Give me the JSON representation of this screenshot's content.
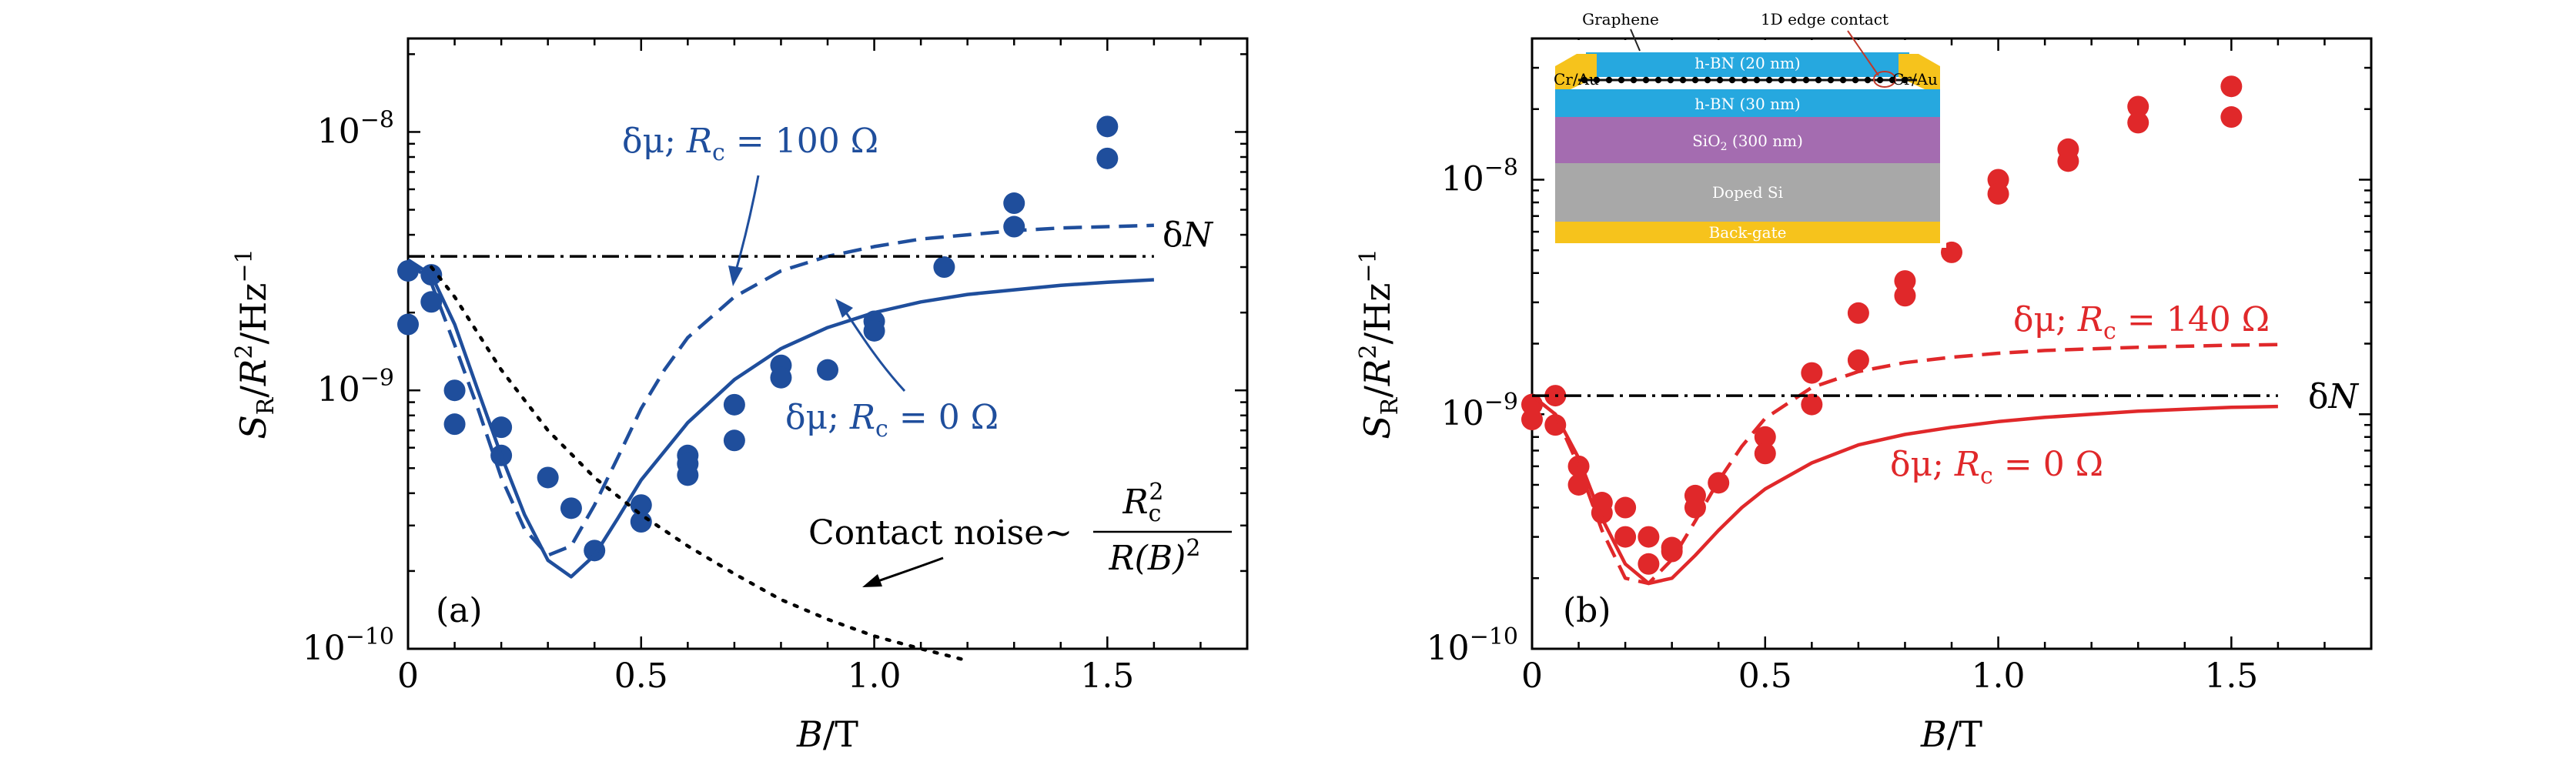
{
  "chart_data": [
    {
      "type": "scatter",
      "panel_label": "(a)",
      "xlabel": "B/T",
      "ylabel": "S_R/R^2/Hz^-1",
      "xlim": [
        0,
        1.8
      ],
      "ylim": [
        1e-10,
        2.3e-08
      ],
      "yscale": "log",
      "x_ticks": [
        "0",
        "0.5",
        "1.0",
        "1.5"
      ],
      "x_tick_values": [
        0,
        0.5,
        1.0,
        1.5
      ],
      "y_ticks": [
        "10^-10",
        "10^-9",
        "10^-8"
      ],
      "color": "#1f4e9c",
      "series": [
        {
          "kind": "points",
          "x": [
            0,
            0,
            0.05,
            0.05,
            0.1,
            0.1,
            0.2,
            0.2,
            0.3,
            0.35,
            0.4,
            0.5,
            0.5,
            0.6,
            0.6,
            0.6,
            0.7,
            0.7,
            0.8,
            0.8,
            0.9,
            1.0,
            1.0,
            1.15,
            1.3,
            1.3,
            1.5,
            1.5
          ],
          "y": [
            1.8e-09,
            2.9e-09,
            2.2e-09,
            2.8e-09,
            1e-09,
            7.4e-10,
            7.2e-10,
            5.6e-10,
            4.6e-10,
            3.5e-10,
            2.4e-10,
            3.6e-10,
            3.1e-10,
            5.6e-10,
            5.2e-10,
            4.7e-10,
            8.8e-10,
            6.4e-10,
            1.25e-09,
            1.12e-09,
            1.2e-09,
            1.85e-09,
            1.7e-09,
            3e-09,
            5.3e-09,
            4.3e-09,
            1.05e-08,
            7.9e-09
          ]
        },
        {
          "kind": "solid",
          "label_ref": "annotations.blue_solid",
          "x": [
            0,
            0.05,
            0.1,
            0.15,
            0.2,
            0.25,
            0.3,
            0.35,
            0.4,
            0.45,
            0.5,
            0.6,
            0.7,
            0.8,
            0.9,
            1.0,
            1.1,
            1.2,
            1.3,
            1.4,
            1.5,
            1.6
          ],
          "y": [
            3.2e-09,
            2.8e-09,
            1.8e-09,
            1e-09,
            5.6e-10,
            3.3e-10,
            2.2e-10,
            1.9e-10,
            2.3e-10,
            3.2e-10,
            4.5e-10,
            7.5e-10,
            1.1e-09,
            1.45e-09,
            1.75e-09,
            2e-09,
            2.2e-09,
            2.35e-09,
            2.45e-09,
            2.55e-09,
            2.62e-09,
            2.68e-09
          ]
        },
        {
          "kind": "dashed",
          "label_ref": "annotations.blue_dashed",
          "x": [
            0,
            0.05,
            0.1,
            0.15,
            0.2,
            0.25,
            0.3,
            0.35,
            0.4,
            0.45,
            0.5,
            0.55,
            0.6,
            0.7,
            0.8,
            0.9,
            1.0,
            1.1,
            1.2,
            1.3,
            1.4,
            1.5,
            1.6
          ],
          "y": [
            3.2e-09,
            2.6e-09,
            1.5e-09,
            8.5e-10,
            4.6e-10,
            2.9e-10,
            2.3e-10,
            2.5e-10,
            3.6e-10,
            5.5e-10,
            8.5e-10,
            1.2e-09,
            1.6e-09,
            2.3e-09,
            2.9e-09,
            3.3e-09,
            3.6e-09,
            3.85e-09,
            4e-09,
            4.15e-09,
            4.25e-09,
            4.3e-09,
            4.35e-09
          ]
        },
        {
          "kind": "dotted",
          "color": "#000000",
          "label_ref": "annotations.contact",
          "x": [
            0.05,
            0.1,
            0.2,
            0.3,
            0.4,
            0.5,
            0.6,
            0.7,
            0.8,
            0.9,
            1.0,
            1.1,
            1.2
          ],
          "y": [
            3e-09,
            2.3e-09,
            1.2e-09,
            7e-10,
            4.6e-10,
            3.3e-10,
            2.5e-10,
            1.95e-10,
            1.55e-10,
            1.3e-10,
            1.12e-10,
            1e-10,
            9e-11
          ]
        },
        {
          "kind": "dashdot",
          "color": "#000000",
          "label_ref": "annotations.dN",
          "x": [
            0,
            1.6
          ],
          "y": [
            3.3e-09,
            3.3e-09
          ]
        }
      ]
    },
    {
      "type": "scatter",
      "panel_label": "(b)",
      "xlabel": "B/T",
      "ylabel": "S_R/R^2/Hz^-1",
      "xlim": [
        0,
        1.8
      ],
      "ylim": [
        1e-10,
        4e-08
      ],
      "yscale": "log",
      "x_ticks": [
        "0",
        "0.5",
        "1.0",
        "1.5"
      ],
      "x_tick_values": [
        0,
        0.5,
        1.0,
        1.5
      ],
      "y_ticks": [
        "10^-10",
        "10^-9",
        "10^-8"
      ],
      "color": "#e0282a",
      "series": [
        {
          "kind": "points",
          "x": [
            0,
            0,
            0.05,
            0.05,
            0.1,
            0.1,
            0.15,
            0.15,
            0.2,
            0.2,
            0.25,
            0.25,
            0.3,
            0.3,
            0.35,
            0.35,
            0.4,
            0.5,
            0.5,
            0.6,
            0.6,
            0.7,
            0.7,
            0.8,
            0.8,
            0.9,
            1.0,
            1.0,
            1.15,
            1.15,
            1.3,
            1.3,
            1.5,
            1.5
          ],
          "y": [
            1.1e-09,
            9.5e-10,
            1.2e-09,
            9e-10,
            6e-10,
            5e-10,
            4.2e-10,
            3.8e-10,
            4e-10,
            3e-10,
            3e-10,
            2.3e-10,
            2.7e-10,
            2.6e-10,
            4.5e-10,
            4e-10,
            5.1e-10,
            8e-10,
            6.8e-10,
            1.5e-09,
            1.1e-09,
            2.7e-09,
            1.7e-09,
            3.7e-09,
            3.2e-09,
            4.9e-09,
            1e-08,
            8.7e-09,
            1.35e-08,
            1.2e-08,
            2.05e-08,
            1.75e-08,
            2.5e-08,
            1.85e-08
          ]
        },
        {
          "kind": "solid",
          "label_ref": "annotations.red_solid",
          "x": [
            0,
            0.05,
            0.1,
            0.15,
            0.2,
            0.25,
            0.3,
            0.35,
            0.4,
            0.45,
            0.5,
            0.6,
            0.7,
            0.8,
            0.9,
            1.0,
            1.1,
            1.2,
            1.3,
            1.4,
            1.5,
            1.6
          ],
          "y": [
            1.2e-09,
            1e-09,
            6.5e-10,
            3.6e-10,
            2.3e-10,
            1.9e-10,
            2e-10,
            2.5e-10,
            3.2e-10,
            4e-10,
            4.8e-10,
            6.2e-10,
            7.4e-10,
            8.2e-10,
            8.8e-10,
            9.3e-10,
            9.7e-10,
            1e-09,
            1.03e-09,
            1.05e-09,
            1.07e-09,
            1.08e-09
          ]
        },
        {
          "kind": "dashed",
          "label_ref": "annotations.red_dashed",
          "x": [
            0,
            0.05,
            0.1,
            0.15,
            0.2,
            0.25,
            0.3,
            0.35,
            0.4,
            0.45,
            0.5,
            0.6,
            0.7,
            0.8,
            0.9,
            1.0,
            1.1,
            1.2,
            1.3,
            1.4,
            1.5,
            1.6
          ],
          "y": [
            1.2e-09,
            1e-09,
            6e-10,
            3.2e-10,
            2e-10,
            1.9e-10,
            2.4e-10,
            3.5e-10,
            5.2e-10,
            7.3e-10,
            9.6e-10,
            1.3e-09,
            1.52e-09,
            1.66e-09,
            1.75e-09,
            1.82e-09,
            1.87e-09,
            1.9e-09,
            1.93e-09,
            1.95e-09,
            1.97e-09,
            1.98e-09
          ]
        },
        {
          "kind": "dashdot",
          "color": "#000000",
          "label_ref": "annotations.dN",
          "x": [
            0,
            1.6
          ],
          "y": [
            1.2e-09,
            1.2e-09
          ]
        }
      ]
    }
  ],
  "annotations": {
    "blue_dashed": {
      "pre": "δμ; ",
      "r": "R",
      "sub": "c",
      "post": " = 100 Ω"
    },
    "blue_solid": {
      "pre": "δμ; ",
      "r": "R",
      "sub": "c",
      "post": " = 0 Ω"
    },
    "red_dashed": {
      "pre": "δμ; ",
      "r": "R",
      "sub": "c",
      "post": " = 140 Ω"
    },
    "red_solid": {
      "pre": "δμ; ",
      "r": "R",
      "sub": "c",
      "post": " = 0 Ω"
    },
    "dN": {
      "d": "δ",
      "n": "N"
    },
    "contact": {
      "text": "Contact noise~",
      "num_r": "R",
      "num_sub": "c",
      "num_sup": "2",
      "den": "R(B)",
      "den_sup": "2"
    }
  },
  "inset": {
    "graphene": "Graphene",
    "edge": "1D edge contact",
    "hbn20": "h-BN (20 nm)",
    "hbn30": "h-BN (30 nm)",
    "sio2": "SiO",
    "sio2_sub": "2",
    "sio2_rest": " (300 nm)",
    "dopedsi": "Doped Si",
    "backgate": "Back-gate",
    "crau_left": "Cr/Au",
    "crau_right": "Cr/Au",
    "colors": {
      "hbn": "#26a8df",
      "sio2": "#a46cb0",
      "si": "#a8a8a8",
      "gold": "#f6c31c"
    }
  }
}
